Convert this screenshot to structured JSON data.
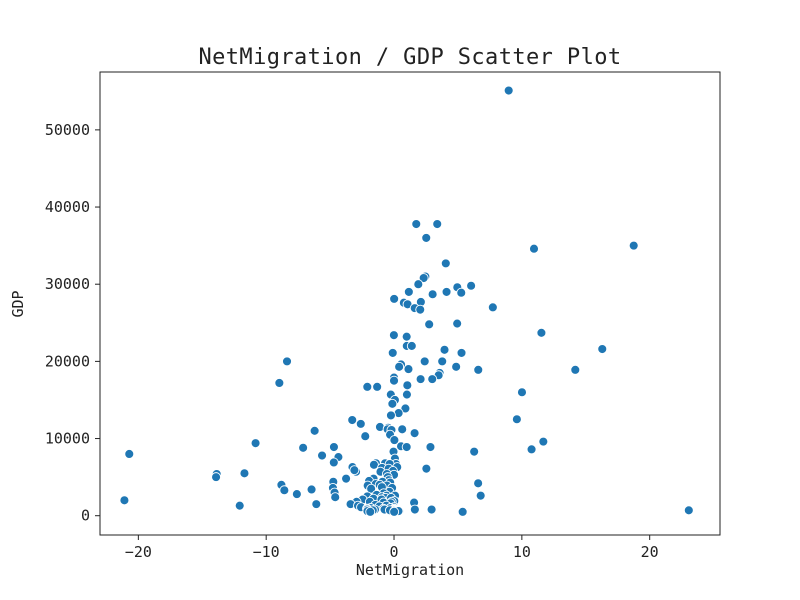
{
  "chart_data": {
    "type": "scatter",
    "title": "NetMigration / GDP Scatter Plot",
    "xlabel": "NetMigration",
    "ylabel": "GDP",
    "xlim": [
      -23.0,
      25.5
    ],
    "ylim": [
      -2500,
      57500
    ],
    "x_ticks": [
      -20,
      -10,
      0,
      10,
      20
    ],
    "y_ticks": [
      0,
      10000,
      20000,
      30000,
      40000,
      50000
    ],
    "x_tick_labels": [
      "−20",
      "−10",
      "0",
      "10",
      "20"
    ],
    "y_tick_labels": [
      "0",
      "10000",
      "20000",
      "30000",
      "40000",
      "50000"
    ],
    "grid": false,
    "legend": "none",
    "colors": {
      "points": "#1f77b4",
      "point_edge": "#ffffff",
      "axes": "#222222",
      "background": "#ffffff"
    },
    "series": [
      {
        "points": [
          [
            8.97,
            55100
          ],
          [
            1.74,
            37800
          ],
          [
            3.38,
            37800
          ],
          [
            2.52,
            36000
          ],
          [
            18.75,
            35000
          ],
          [
            10.95,
            34600
          ],
          [
            4.05,
            32700
          ],
          [
            2.45,
            31000
          ],
          [
            2.32,
            30800
          ],
          [
            1.9,
            30000
          ],
          [
            6.03,
            29800
          ],
          [
            4.95,
            29600
          ],
          [
            1.16,
            29000
          ],
          [
            4.11,
            29000
          ],
          [
            5.26,
            28900
          ],
          [
            3.02,
            28700
          ],
          [
            0.01,
            28100
          ],
          [
            0.77,
            27600
          ],
          [
            2.1,
            27700
          ],
          [
            1.06,
            27400
          ],
          [
            7.73,
            27000
          ],
          [
            1.62,
            26900
          ],
          [
            2.05,
            26700
          ],
          [
            2.75,
            24800
          ],
          [
            4.94,
            24900
          ],
          [
            11.53,
            23700
          ],
          [
            -0.01,
            23400
          ],
          [
            0.99,
            23200
          ],
          [
            1.0,
            22000
          ],
          [
            1.39,
            22000
          ],
          [
            16.29,
            21600
          ],
          [
            3.95,
            21500
          ],
          [
            -0.1,
            21100
          ],
          [
            5.28,
            21100
          ],
          [
            -8.37,
            20000
          ],
          [
            2.4,
            20000
          ],
          [
            3.77,
            20000
          ],
          [
            0.55,
            19600
          ],
          [
            0.4,
            19300
          ],
          [
            4.86,
            19300
          ],
          [
            1.13,
            19000
          ],
          [
            6.59,
            18900
          ],
          [
            14.18,
            18900
          ],
          [
            3.57,
            18500
          ],
          [
            3.49,
            18200
          ],
          [
            0.0,
            17900
          ],
          [
            2.99,
            17700
          ],
          [
            2.08,
            17700
          ],
          [
            0.0,
            17500
          ],
          [
            -8.97,
            17200
          ],
          [
            1.04,
            16900
          ],
          [
            -1.32,
            16700
          ],
          [
            -2.09,
            16700
          ],
          [
            10.01,
            16000
          ],
          [
            1.01,
            15700
          ],
          [
            -0.25,
            15700
          ],
          [
            0.07,
            15000
          ],
          [
            -0.13,
            14500
          ],
          [
            0.89,
            13900
          ],
          [
            0.36,
            13300
          ],
          [
            -0.24,
            13000
          ],
          [
            -3.27,
            12400
          ],
          [
            9.61,
            12500
          ],
          [
            -2.6,
            11900
          ],
          [
            -1.1,
            11500
          ],
          [
            -0.46,
            11400
          ],
          [
            -0.5,
            11200
          ],
          [
            0.64,
            11200
          ],
          [
            -0.2,
            11100
          ],
          [
            -6.21,
            11000
          ],
          [
            1.61,
            10700
          ],
          [
            -0.31,
            10500
          ],
          [
            -2.25,
            10300
          ],
          [
            0.03,
            9800
          ],
          [
            11.68,
            9600
          ],
          [
            -10.83,
            9400
          ],
          [
            0.55,
            9000
          ],
          [
            -4.7,
            8900
          ],
          [
            2.85,
            8900
          ],
          [
            0.99,
            8900
          ],
          [
            -7.11,
            8800
          ],
          [
            10.76,
            8600
          ],
          [
            6.27,
            8300
          ],
          [
            -0.04,
            8300
          ],
          [
            -20.71,
            8000
          ],
          [
            -5.63,
            7800
          ],
          [
            -4.35,
            7600
          ],
          [
            0.07,
            7400
          ],
          [
            -4.71,
            6900
          ],
          [
            -1.41,
            6800
          ],
          [
            0.15,
            6700
          ],
          [
            -0.7,
            6800
          ],
          [
            -0.34,
            6700
          ],
          [
            -1.57,
            6600
          ],
          [
            -3.25,
            6300
          ],
          [
            -0.94,
            6200
          ],
          [
            0.25,
            6300
          ],
          [
            -0.42,
            6100
          ],
          [
            2.53,
            6100
          ],
          [
            -2.97,
            5700
          ],
          [
            -0.08,
            5800
          ],
          [
            -3.1,
            5900
          ],
          [
            -1.06,
            5700
          ],
          [
            -11.7,
            5500
          ],
          [
            -13.87,
            5400
          ],
          [
            -0.56,
            5400
          ],
          [
            0.0,
            5300
          ],
          [
            -13.92,
            5000
          ],
          [
            -0.49,
            5000
          ],
          [
            -3.75,
            4800
          ],
          [
            -1.6,
            4800
          ],
          [
            -0.41,
            4600
          ],
          [
            -1.95,
            4500
          ],
          [
            -0.9,
            4400
          ],
          [
            -0.3,
            4300
          ],
          [
            -4.75,
            4400
          ],
          [
            6.58,
            4200
          ],
          [
            -1.43,
            4100
          ],
          [
            -1.12,
            4000
          ],
          [
            -8.81,
            4000
          ],
          [
            -0.55,
            3900
          ],
          [
            -2.06,
            3900
          ],
          [
            -0.95,
            3700
          ],
          [
            -0.15,
            3600
          ],
          [
            -4.78,
            3600
          ],
          [
            -1.79,
            3500
          ],
          [
            -6.45,
            3400
          ],
          [
            -8.58,
            3300
          ],
          [
            -0.36,
            3100
          ],
          [
            -4.65,
            3000
          ],
          [
            -0.81,
            2900
          ],
          [
            -7.6,
            2800
          ],
          [
            -1.36,
            2700
          ],
          [
            -0.58,
            2600
          ],
          [
            0.08,
            2600
          ],
          [
            6.78,
            2600
          ],
          [
            -2.09,
            2500
          ],
          [
            -0.95,
            2400
          ],
          [
            -4.6,
            2400
          ],
          [
            -0.66,
            2300
          ],
          [
            -0.23,
            2300
          ],
          [
            -1.61,
            2200
          ],
          [
            -2.45,
            2100
          ],
          [
            -0.98,
            2100
          ],
          [
            -21.09,
            2000
          ],
          [
            0.02,
            1900
          ],
          [
            -0.18,
            1800
          ],
          [
            -2.93,
            1800
          ],
          [
            -1.89,
            1800
          ],
          [
            -0.82,
            1700
          ],
          [
            1.57,
            1700
          ],
          [
            -0.27,
            1600
          ],
          [
            -3.4,
            1500
          ],
          [
            -6.08,
            1500
          ],
          [
            -1.46,
            1400
          ],
          [
            -12.07,
            1300
          ],
          [
            -2.82,
            1300
          ],
          [
            -0.61,
            1300
          ],
          [
            -1.15,
            1200
          ],
          [
            -2.58,
            1100
          ],
          [
            0.0,
            1100
          ],
          [
            -1.82,
            1000
          ],
          [
            -0.28,
            1000
          ],
          [
            -2.11,
            900
          ],
          [
            -0.83,
            900
          ],
          [
            0.01,
            900
          ],
          [
            1.63,
            800
          ],
          [
            -0.74,
            800
          ],
          [
            0.03,
            800
          ],
          [
            -2.09,
            800
          ],
          [
            -1.49,
            800
          ],
          [
            2.94,
            800
          ],
          [
            0.02,
            700
          ],
          [
            -0.01,
            700
          ],
          [
            -0.32,
            700
          ],
          [
            23.06,
            700
          ],
          [
            -1.66,
            700
          ],
          [
            -2.08,
            600
          ],
          [
            0.04,
            600
          ],
          [
            0.41,
            600
          ],
          [
            0.35,
            600
          ],
          [
            5.37,
            500
          ],
          [
            0.01,
            500
          ],
          [
            -1.86,
            500
          ]
        ]
      }
    ]
  }
}
